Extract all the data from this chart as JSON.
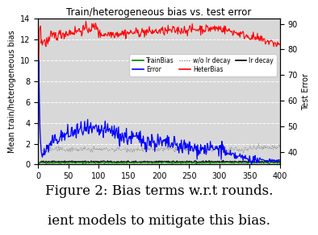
{
  "title": "Train/heterogeneous bias vs. test error",
  "ylabel_left": "Mean train/heterogeneous bias",
  "ylabel_right": "Test Error",
  "xlim": [
    0,
    400
  ],
  "ylim_left": [
    0,
    14
  ],
  "ylim_right": [
    35,
    92
  ],
  "xticks": [
    0,
    50,
    100,
    150,
    200,
    250,
    300,
    350,
    400
  ],
  "yticks_left": [
    0,
    2,
    4,
    6,
    8,
    10,
    12,
    14
  ],
  "yticks_right": [
    40,
    50,
    60,
    70,
    80,
    90
  ],
  "bg_color": "#d8d8d8",
  "grid_color": "white",
  "title_fontsize": 8.5,
  "axis_fontsize": 7,
  "tick_fontsize": 7,
  "caption_line1": "Figure 2: Bias terms w.r.t rounds.",
  "caption_line2": "ient models to mitigate this bias.",
  "caption_fontsize": 14
}
